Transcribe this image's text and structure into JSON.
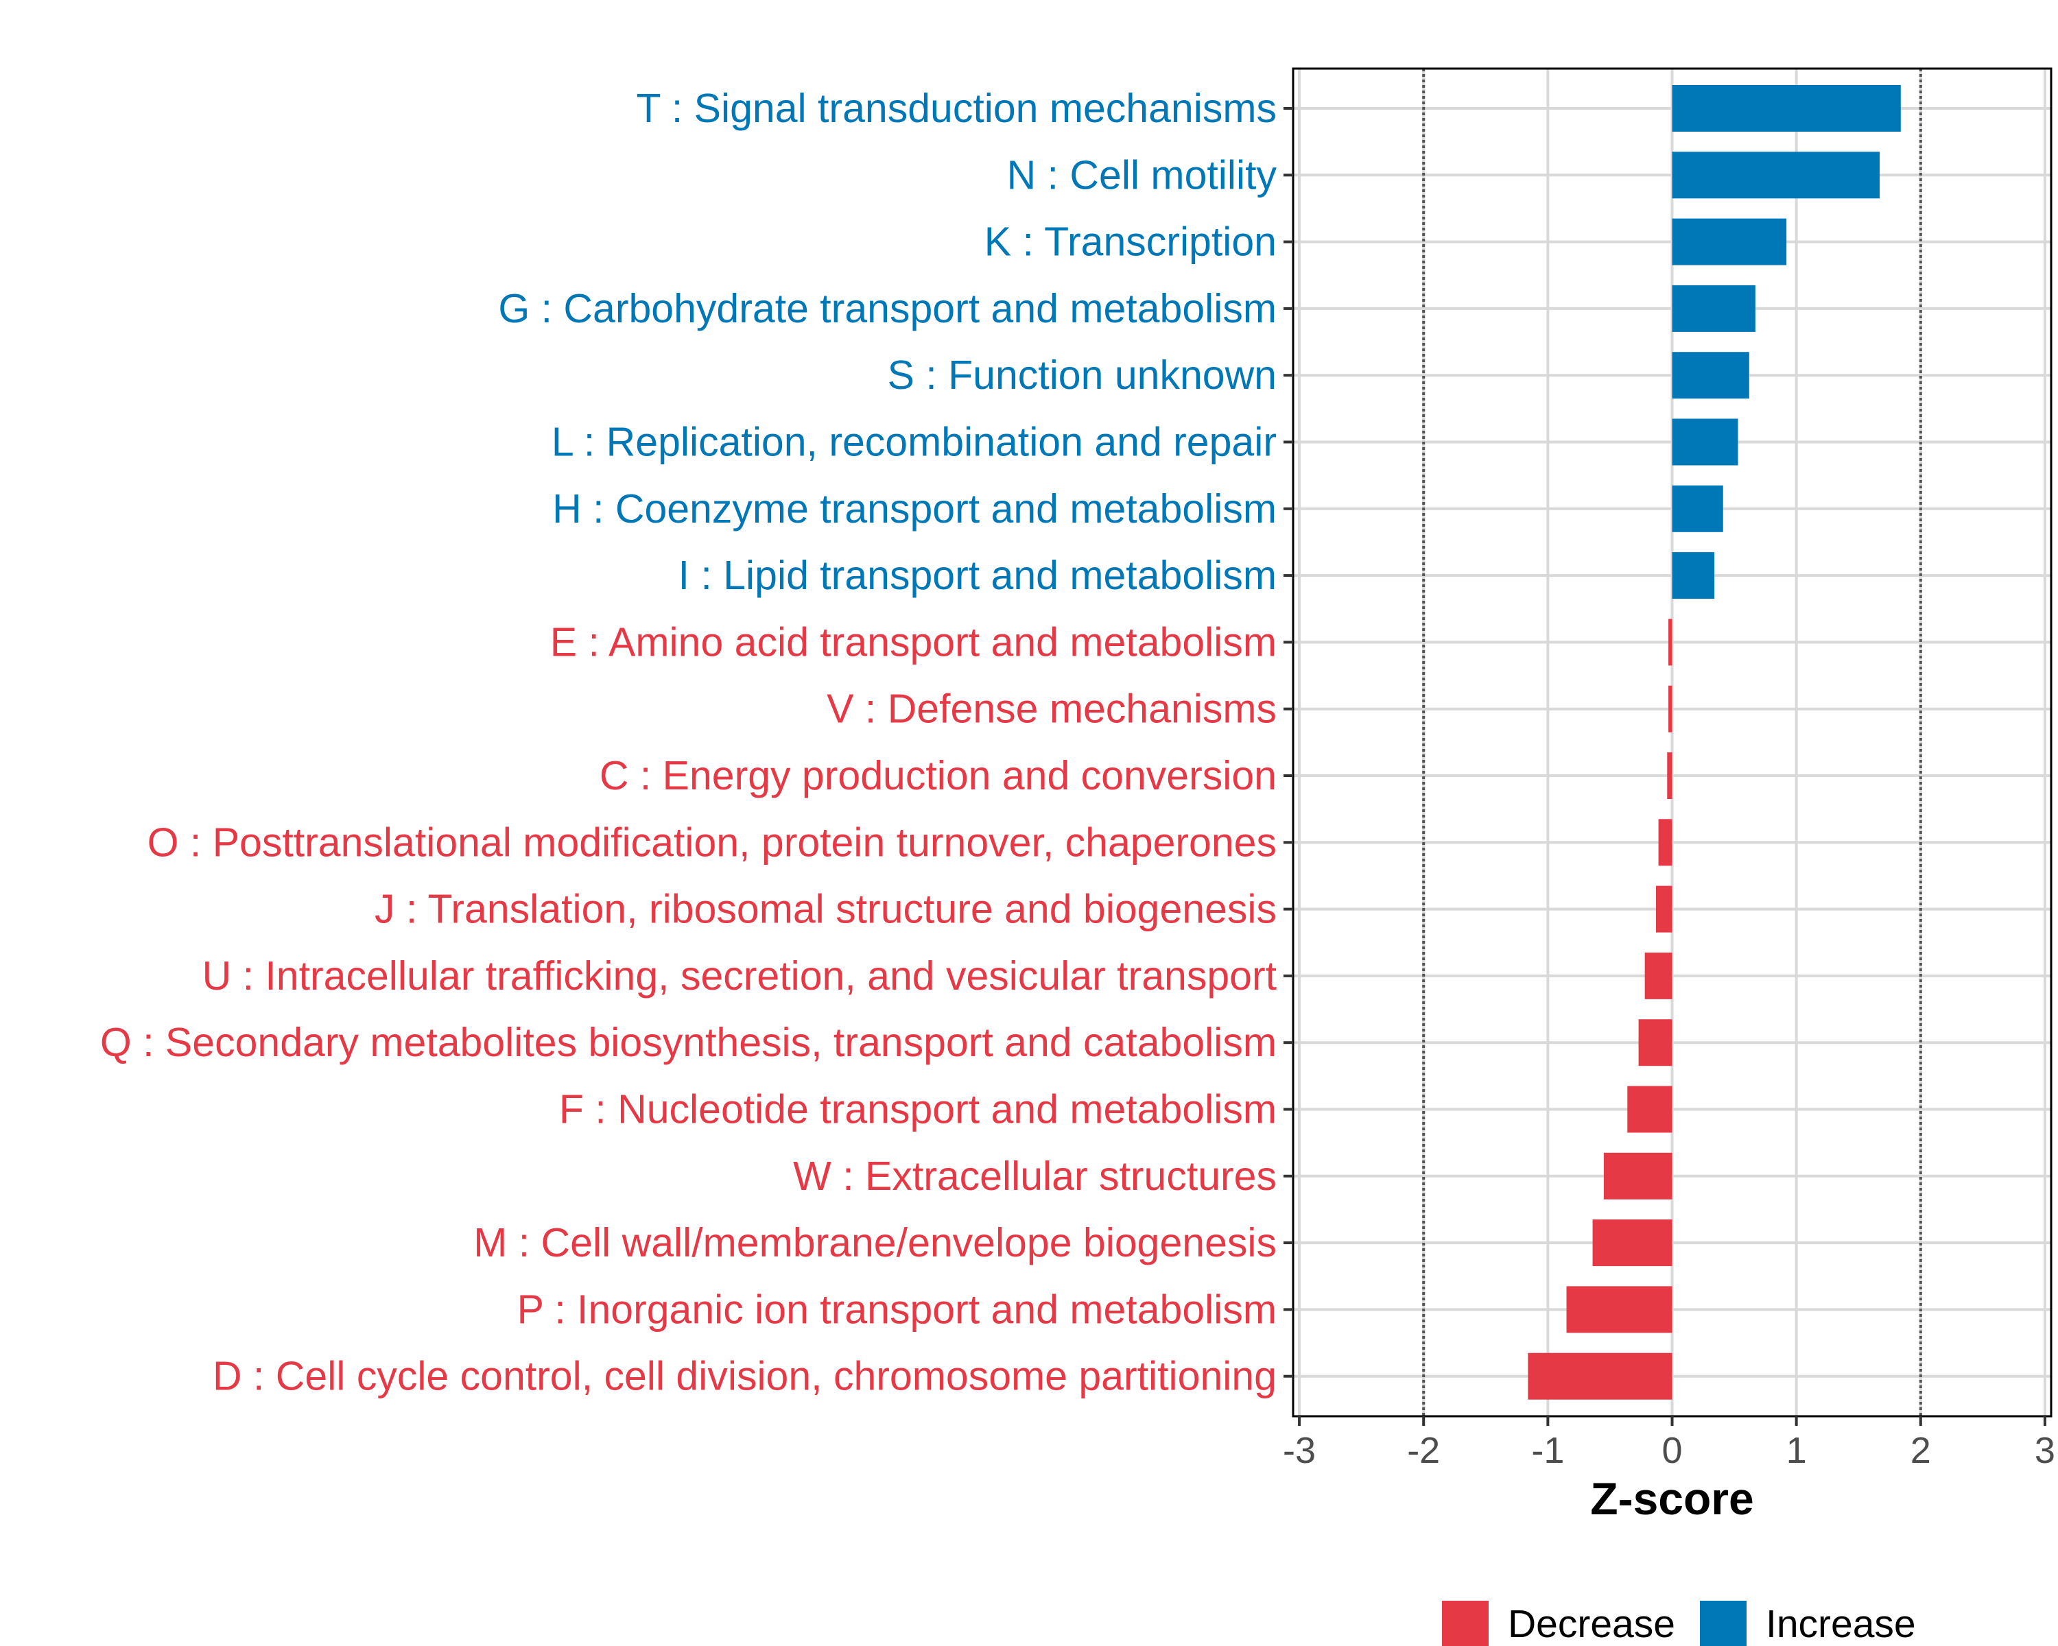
{
  "chart_data": {
    "type": "bar",
    "orientation": "horizontal",
    "xlabel": "Z-score",
    "ylabel": "",
    "xlim": [
      -3.05,
      3.05
    ],
    "x_ticks": [
      -3,
      -2,
      -1,
      0,
      1,
      2,
      3
    ],
    "reference_lines": [
      -2,
      2
    ],
    "grid": true,
    "legend_position": "bottom-right",
    "colors": {
      "Decrease": "#e63946",
      "Increase": "#0077b6"
    },
    "legend": [
      {
        "name": "Decrease",
        "color": "#e63946"
      },
      {
        "name": "Increase",
        "color": "#0077b6"
      }
    ],
    "categories": [
      "T : Signal transduction mechanisms",
      "N : Cell motility",
      "K : Transcription",
      "G : Carbohydrate transport and metabolism",
      "S : Function unknown",
      "L : Replication, recombination and repair",
      "H : Coenzyme transport and metabolism",
      "I : Lipid transport and metabolism",
      "E : Amino acid transport and metabolism",
      "V : Defense mechanisms",
      "C : Energy production and conversion",
      "O : Posttranslational modification, protein turnover, chaperones",
      "J : Translation, ribosomal structure and biogenesis",
      "U : Intracellular trafficking, secretion, and vesicular transport",
      "Q : Secondary metabolites biosynthesis, transport and catabolism",
      "F : Nucleotide transport and metabolism",
      "W : Extracellular structures",
      "M : Cell wall/membrane/envelope biogenesis",
      "P : Inorganic ion transport and metabolism",
      "D : Cell cycle control, cell division, chromosome partitioning"
    ],
    "values": [
      1.84,
      1.67,
      0.92,
      0.67,
      0.62,
      0.53,
      0.41,
      0.34,
      -0.03,
      -0.03,
      -0.04,
      -0.11,
      -0.13,
      -0.22,
      -0.27,
      -0.36,
      -0.55,
      -0.64,
      -0.85,
      -1.16
    ],
    "groups": [
      "Increase",
      "Increase",
      "Increase",
      "Increase",
      "Increase",
      "Increase",
      "Increase",
      "Increase",
      "Decrease",
      "Decrease",
      "Decrease",
      "Decrease",
      "Decrease",
      "Decrease",
      "Decrease",
      "Decrease",
      "Decrease",
      "Decrease",
      "Decrease",
      "Decrease"
    ]
  }
}
